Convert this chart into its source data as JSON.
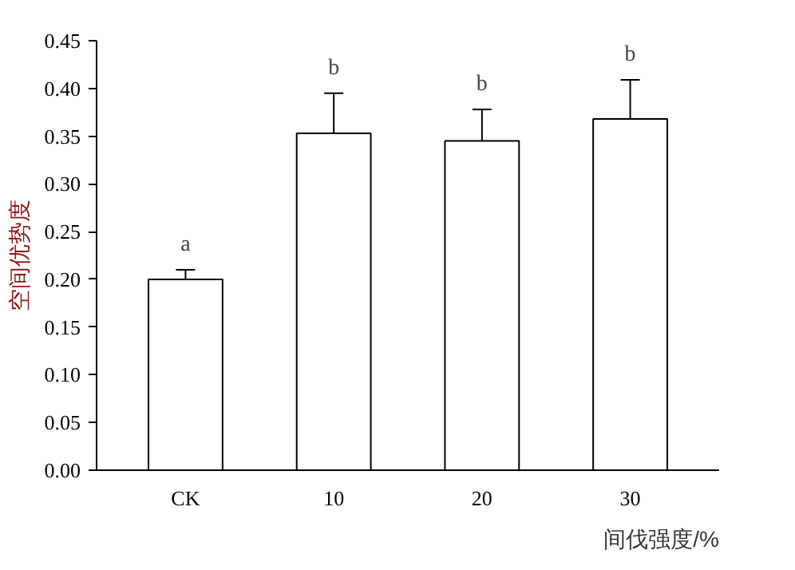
{
  "chart_data": {
    "type": "bar",
    "xlabel": "间伐强度/%",
    "ylabel": "空间优势度",
    "categories": [
      "CK",
      "10",
      "20",
      "30"
    ],
    "values": [
      0.2,
      0.353,
      0.345,
      0.368
    ],
    "errors": [
      0.01,
      0.042,
      0.033,
      0.041
    ],
    "color": "#ffffff",
    "ylim": [
      0,
      0.45
    ],
    "yticks": [
      {
        "value": 0,
        "label": "0.00"
      },
      {
        "value": 0.05,
        "label": "0.05"
      },
      {
        "value": 0.1,
        "label": "0.10"
      },
      {
        "value": 0.15,
        "label": "0.15"
      },
      {
        "value": 0.2,
        "label": "0.20"
      },
      {
        "value": 0.25,
        "label": "0.25"
      },
      {
        "value": 0.3,
        "label": "0.30"
      },
      {
        "value": 0.35,
        "label": "0.35"
      },
      {
        "value": 0.4,
        "label": "0.40"
      },
      {
        "value": 0.45,
        "label": "0.45"
      }
    ],
    "annotations": [
      "a",
      "b",
      "b",
      "b"
    ],
    "grid": false
  }
}
